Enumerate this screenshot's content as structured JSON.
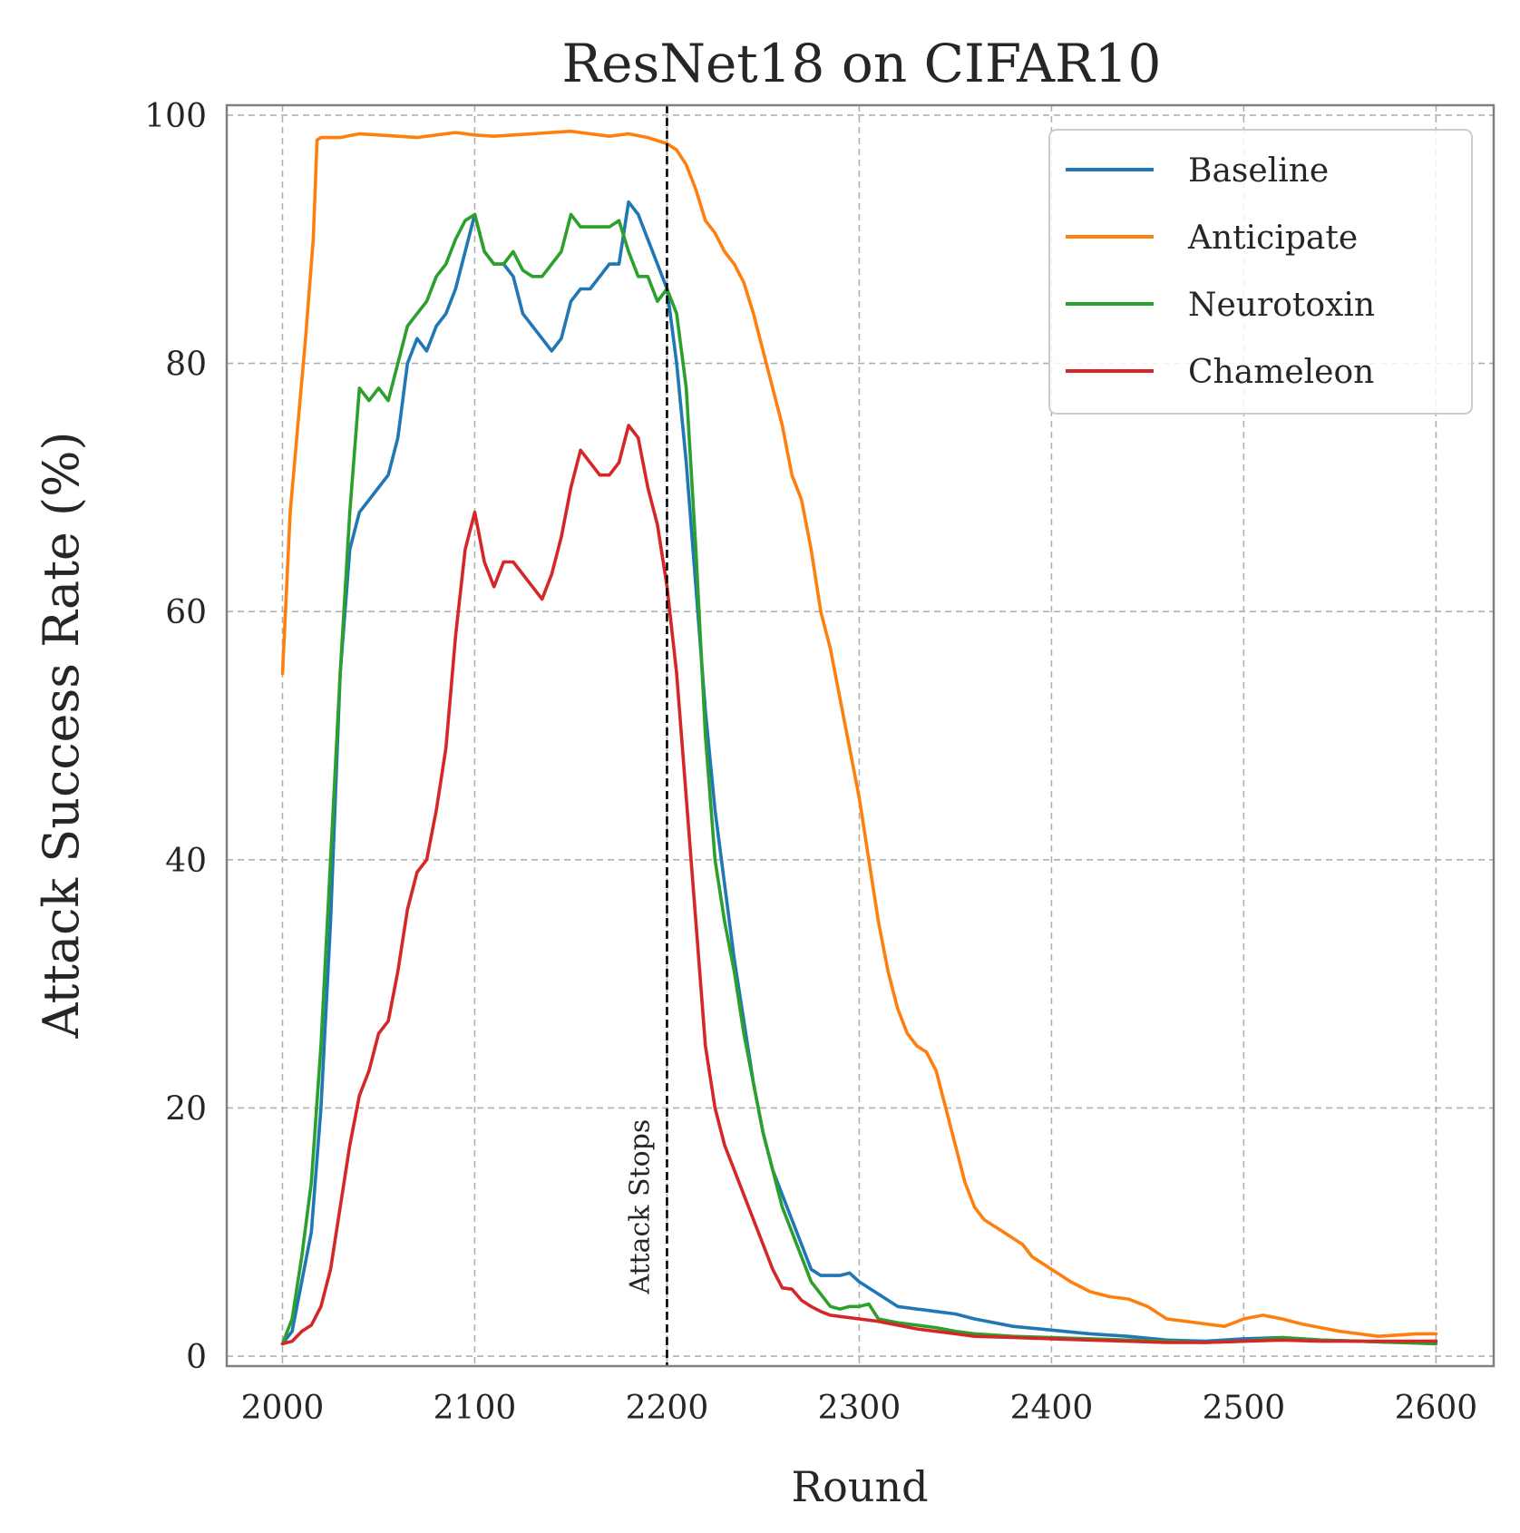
{
  "chart_data": {
    "type": "line",
    "title": "ResNet18 on CIFAR10",
    "xlabel": "Round",
    "ylabel": "Attack Success Rate (%)",
    "xlim": [
      1971,
      2630
    ],
    "ylim": [
      -0.8,
      100.8
    ],
    "xticks": [
      2000,
      2100,
      2200,
      2300,
      2400,
      2500,
      2600
    ],
    "yticks": [
      0,
      20,
      40,
      60,
      80,
      100
    ],
    "grid": true,
    "legend_position": "top-right",
    "annotation": {
      "text": "Attack Stops",
      "x": 2200
    },
    "series": [
      {
        "name": "Baseline",
        "color": "#1f77b4",
        "points": [
          [
            2000,
            1
          ],
          [
            2005,
            2
          ],
          [
            2010,
            6
          ],
          [
            2015,
            10
          ],
          [
            2020,
            20
          ],
          [
            2025,
            35
          ],
          [
            2030,
            55
          ],
          [
            2035,
            65
          ],
          [
            2040,
            68
          ],
          [
            2045,
            69
          ],
          [
            2050,
            70
          ],
          [
            2055,
            71
          ],
          [
            2060,
            74
          ],
          [
            2065,
            80
          ],
          [
            2070,
            82
          ],
          [
            2075,
            81
          ],
          [
            2080,
            83
          ],
          [
            2085,
            84
          ],
          [
            2090,
            86
          ],
          [
            2095,
            89
          ],
          [
            2100,
            92
          ],
          [
            2105,
            89
          ],
          [
            2110,
            88
          ],
          [
            2115,
            88
          ],
          [
            2120,
            87
          ],
          [
            2125,
            84
          ],
          [
            2130,
            83
          ],
          [
            2135,
            82
          ],
          [
            2140,
            81
          ],
          [
            2145,
            82
          ],
          [
            2150,
            85
          ],
          [
            2155,
            86
          ],
          [
            2160,
            86
          ],
          [
            2165,
            87
          ],
          [
            2170,
            88
          ],
          [
            2175,
            88
          ],
          [
            2180,
            93
          ],
          [
            2185,
            92
          ],
          [
            2190,
            90
          ],
          [
            2195,
            88
          ],
          [
            2200,
            86
          ],
          [
            2205,
            80
          ],
          [
            2210,
            72
          ],
          [
            2215,
            62
          ],
          [
            2220,
            52
          ],
          [
            2225,
            44
          ],
          [
            2230,
            38
          ],
          [
            2235,
            32
          ],
          [
            2240,
            27
          ],
          [
            2245,
            22
          ],
          [
            2250,
            18
          ],
          [
            2255,
            15
          ],
          [
            2260,
            13
          ],
          [
            2265,
            11
          ],
          [
            2270,
            9
          ],
          [
            2275,
            7
          ],
          [
            2280,
            6.5
          ],
          [
            2285,
            6.5
          ],
          [
            2290,
            6.5
          ],
          [
            2295,
            6.7
          ],
          [
            2300,
            6
          ],
          [
            2310,
            5
          ],
          [
            2320,
            4
          ],
          [
            2330,
            3.8
          ],
          [
            2340,
            3.6
          ],
          [
            2350,
            3.4
          ],
          [
            2360,
            3
          ],
          [
            2380,
            2.4
          ],
          [
            2400,
            2.1
          ],
          [
            2420,
            1.8
          ],
          [
            2440,
            1.6
          ],
          [
            2460,
            1.3
          ],
          [
            2480,
            1.2
          ],
          [
            2500,
            1.4
          ],
          [
            2520,
            1.5
          ],
          [
            2540,
            1.3
          ],
          [
            2560,
            1.2
          ],
          [
            2580,
            1.1
          ],
          [
            2600,
            1.2
          ]
        ]
      },
      {
        "name": "Anticipate",
        "color": "#ff7f0e",
        "points": [
          [
            2000,
            55
          ],
          [
            2004,
            68
          ],
          [
            2008,
            75
          ],
          [
            2012,
            82
          ],
          [
            2016,
            90
          ],
          [
            2018,
            98
          ],
          [
            2020,
            98.2
          ],
          [
            2030,
            98.2
          ],
          [
            2040,
            98.5
          ],
          [
            2050,
            98.4
          ],
          [
            2060,
            98.3
          ],
          [
            2070,
            98.2
          ],
          [
            2080,
            98.4
          ],
          [
            2090,
            98.6
          ],
          [
            2100,
            98.4
          ],
          [
            2110,
            98.3
          ],
          [
            2120,
            98.4
          ],
          [
            2130,
            98.5
          ],
          [
            2140,
            98.6
          ],
          [
            2150,
            98.7
          ],
          [
            2160,
            98.5
          ],
          [
            2170,
            98.3
          ],
          [
            2180,
            98.5
          ],
          [
            2190,
            98.2
          ],
          [
            2200,
            97.7
          ],
          [
            2205,
            97.2
          ],
          [
            2210,
            96
          ],
          [
            2215,
            94
          ],
          [
            2220,
            91.5
          ],
          [
            2225,
            90.5
          ],
          [
            2230,
            89
          ],
          [
            2235,
            88
          ],
          [
            2240,
            86.5
          ],
          [
            2245,
            84
          ],
          [
            2250,
            81
          ],
          [
            2255,
            78
          ],
          [
            2260,
            75
          ],
          [
            2265,
            71
          ],
          [
            2270,
            69
          ],
          [
            2275,
            65
          ],
          [
            2280,
            60
          ],
          [
            2285,
            57
          ],
          [
            2290,
            53
          ],
          [
            2295,
            49
          ],
          [
            2300,
            45
          ],
          [
            2305,
            40
          ],
          [
            2310,
            35
          ],
          [
            2315,
            31
          ],
          [
            2320,
            28
          ],
          [
            2325,
            26
          ],
          [
            2330,
            25
          ],
          [
            2335,
            24.5
          ],
          [
            2340,
            23
          ],
          [
            2345,
            20
          ],
          [
            2350,
            17
          ],
          [
            2355,
            14
          ],
          [
            2360,
            12
          ],
          [
            2365,
            11
          ],
          [
            2370,
            10.5
          ],
          [
            2375,
            10
          ],
          [
            2380,
            9.5
          ],
          [
            2385,
            9
          ],
          [
            2390,
            8
          ],
          [
            2395,
            7.5
          ],
          [
            2400,
            7
          ],
          [
            2410,
            6
          ],
          [
            2420,
            5.2
          ],
          [
            2430,
            4.8
          ],
          [
            2440,
            4.6
          ],
          [
            2450,
            4
          ],
          [
            2460,
            3
          ],
          [
            2470,
            2.8
          ],
          [
            2480,
            2.6
          ],
          [
            2490,
            2.4
          ],
          [
            2500,
            3
          ],
          [
            2510,
            3.3
          ],
          [
            2520,
            3
          ],
          [
            2530,
            2.6
          ],
          [
            2540,
            2.3
          ],
          [
            2550,
            2
          ],
          [
            2560,
            1.8
          ],
          [
            2570,
            1.6
          ],
          [
            2580,
            1.7
          ],
          [
            2590,
            1.8
          ],
          [
            2600,
            1.8
          ]
        ]
      },
      {
        "name": "Neurotoxin",
        "color": "#2ca02c",
        "points": [
          [
            2000,
            1
          ],
          [
            2005,
            3
          ],
          [
            2010,
            8
          ],
          [
            2015,
            14
          ],
          [
            2020,
            25
          ],
          [
            2025,
            40
          ],
          [
            2030,
            55
          ],
          [
            2035,
            68
          ],
          [
            2040,
            78
          ],
          [
            2045,
            77
          ],
          [
            2050,
            78
          ],
          [
            2055,
            77
          ],
          [
            2060,
            80
          ],
          [
            2065,
            83
          ],
          [
            2070,
            84
          ],
          [
            2075,
            85
          ],
          [
            2080,
            87
          ],
          [
            2085,
            88
          ],
          [
            2090,
            90
          ],
          [
            2095,
            91.5
          ],
          [
            2100,
            92
          ],
          [
            2105,
            89
          ],
          [
            2110,
            88
          ],
          [
            2115,
            88
          ],
          [
            2120,
            89
          ],
          [
            2125,
            87.5
          ],
          [
            2130,
            87
          ],
          [
            2135,
            87
          ],
          [
            2140,
            88
          ],
          [
            2145,
            89
          ],
          [
            2150,
            92
          ],
          [
            2155,
            91
          ],
          [
            2160,
            91
          ],
          [
            2165,
            91
          ],
          [
            2170,
            91
          ],
          [
            2175,
            91.5
          ],
          [
            2180,
            89
          ],
          [
            2185,
            87
          ],
          [
            2190,
            87
          ],
          [
            2195,
            85
          ],
          [
            2200,
            86
          ],
          [
            2205,
            84
          ],
          [
            2210,
            78
          ],
          [
            2215,
            65
          ],
          [
            2220,
            50
          ],
          [
            2225,
            40
          ],
          [
            2230,
            35
          ],
          [
            2235,
            31
          ],
          [
            2240,
            26
          ],
          [
            2245,
            22
          ],
          [
            2250,
            18
          ],
          [
            2255,
            15
          ],
          [
            2260,
            12
          ],
          [
            2265,
            10
          ],
          [
            2270,
            8
          ],
          [
            2275,
            6
          ],
          [
            2280,
            5
          ],
          [
            2285,
            4
          ],
          [
            2290,
            3.8
          ],
          [
            2295,
            4
          ],
          [
            2300,
            4
          ],
          [
            2305,
            4.2
          ],
          [
            2310,
            3
          ],
          [
            2320,
            2.7
          ],
          [
            2330,
            2.5
          ],
          [
            2340,
            2.3
          ],
          [
            2350,
            2
          ],
          [
            2360,
            1.8
          ],
          [
            2380,
            1.6
          ],
          [
            2400,
            1.5
          ],
          [
            2420,
            1.4
          ],
          [
            2440,
            1.3
          ],
          [
            2460,
            1.2
          ],
          [
            2480,
            1.1
          ],
          [
            2500,
            1.2
          ],
          [
            2520,
            1.5
          ],
          [
            2540,
            1.3
          ],
          [
            2560,
            1.2
          ],
          [
            2580,
            1.1
          ],
          [
            2600,
            1
          ]
        ]
      },
      {
        "name": "Chameleon",
        "color": "#d62728",
        "points": [
          [
            2000,
            1
          ],
          [
            2005,
            1.2
          ],
          [
            2010,
            2
          ],
          [
            2015,
            2.5
          ],
          [
            2020,
            4
          ],
          [
            2025,
            7
          ],
          [
            2030,
            12
          ],
          [
            2035,
            17
          ],
          [
            2040,
            21
          ],
          [
            2045,
            23
          ],
          [
            2050,
            26
          ],
          [
            2055,
            27
          ],
          [
            2060,
            31
          ],
          [
            2065,
            36
          ],
          [
            2070,
            39
          ],
          [
            2075,
            40
          ],
          [
            2080,
            44
          ],
          [
            2085,
            49
          ],
          [
            2090,
            58
          ],
          [
            2095,
            65
          ],
          [
            2100,
            68
          ],
          [
            2105,
            64
          ],
          [
            2110,
            62
          ],
          [
            2115,
            64
          ],
          [
            2120,
            64
          ],
          [
            2125,
            63
          ],
          [
            2130,
            62
          ],
          [
            2135,
            61
          ],
          [
            2140,
            63
          ],
          [
            2145,
            66
          ],
          [
            2150,
            70
          ],
          [
            2155,
            73
          ],
          [
            2160,
            72
          ],
          [
            2165,
            71
          ],
          [
            2170,
            71
          ],
          [
            2175,
            72
          ],
          [
            2180,
            75
          ],
          [
            2185,
            74
          ],
          [
            2190,
            70
          ],
          [
            2195,
            67
          ],
          [
            2200,
            62
          ],
          [
            2205,
            55
          ],
          [
            2210,
            45
          ],
          [
            2215,
            35
          ],
          [
            2220,
            25
          ],
          [
            2225,
            20
          ],
          [
            2230,
            17
          ],
          [
            2235,
            15
          ],
          [
            2240,
            13
          ],
          [
            2245,
            11
          ],
          [
            2250,
            9
          ],
          [
            2255,
            7
          ],
          [
            2260,
            5.5
          ],
          [
            2265,
            5.4
          ],
          [
            2270,
            4.5
          ],
          [
            2275,
            4
          ],
          [
            2280,
            3.6
          ],
          [
            2285,
            3.3
          ],
          [
            2290,
            3.2
          ],
          [
            2295,
            3.1
          ],
          [
            2300,
            3
          ],
          [
            2310,
            2.8
          ],
          [
            2320,
            2.5
          ],
          [
            2330,
            2.2
          ],
          [
            2340,
            2
          ],
          [
            2350,
            1.8
          ],
          [
            2360,
            1.6
          ],
          [
            2380,
            1.5
          ],
          [
            2400,
            1.4
          ],
          [
            2420,
            1.3
          ],
          [
            2440,
            1.2
          ],
          [
            2460,
            1.1
          ],
          [
            2480,
            1.1
          ],
          [
            2500,
            1.2
          ],
          [
            2520,
            1.3
          ],
          [
            2540,
            1.2
          ],
          [
            2560,
            1.2
          ],
          [
            2580,
            1.2
          ],
          [
            2600,
            1.2
          ]
        ]
      }
    ]
  }
}
